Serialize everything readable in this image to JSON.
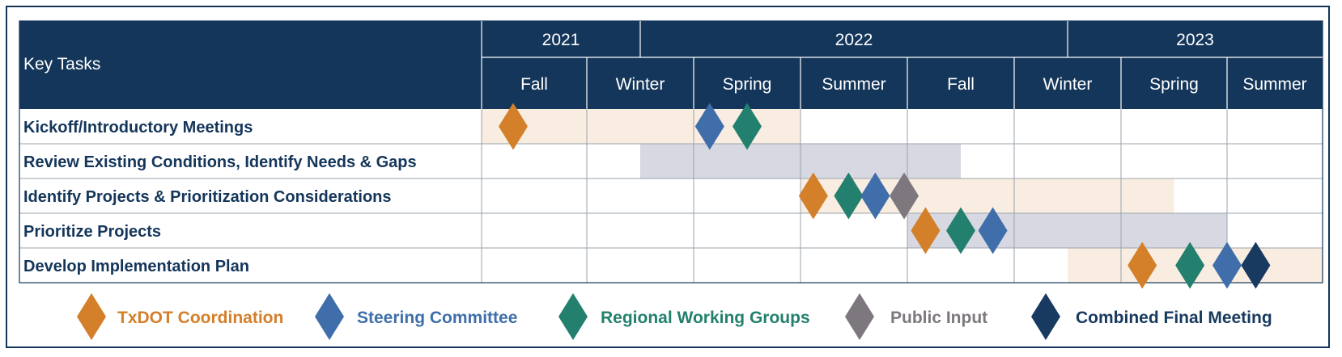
{
  "header": {
    "key_tasks_label": "Key Tasks",
    "years": [
      "2021",
      "2022",
      "2023"
    ],
    "seasons": [
      "Fall",
      "Winter",
      "Spring",
      "Summer",
      "Fall",
      "Winter",
      "Spring",
      "Summer"
    ]
  },
  "tasks": [
    {
      "label": "Kickoff/Introductory Meetings",
      "bar_start": 0.0,
      "bar_end": 3.0,
      "bar_color": "#f8ede0",
      "milestones": [
        {
          "pos": 0.3,
          "type": "txdot"
        },
        {
          "pos": 2.15,
          "type": "steering"
        },
        {
          "pos": 2.5,
          "type": "regional"
        }
      ]
    },
    {
      "label": "Review Existing Conditions, Identify Needs & Gaps",
      "bar_start": 1.5,
      "bar_end": 4.5,
      "bar_color": "#d7d8e1",
      "milestones": []
    },
    {
      "label": "Identify Projects & Prioritization Considerations",
      "bar_start": 3.0,
      "bar_end": 6.5,
      "bar_color": "#f8ede0",
      "milestones": [
        {
          "pos": 3.12,
          "type": "txdot"
        },
        {
          "pos": 3.45,
          "type": "regional"
        },
        {
          "pos": 3.7,
          "type": "steering"
        },
        {
          "pos": 3.97,
          "type": "public"
        }
      ]
    },
    {
      "label": "Prioritize Projects",
      "bar_start": 4.0,
      "bar_end": 7.0,
      "bar_color": "#d7d8e1",
      "milestones": [
        {
          "pos": 4.17,
          "type": "txdot"
        },
        {
          "pos": 4.5,
          "type": "regional"
        },
        {
          "pos": 4.8,
          "type": "steering"
        }
      ]
    },
    {
      "label": "Develop Implementation Plan",
      "bar_start": 5.5,
      "bar_end": 8.0,
      "bar_color": "#f8ede0",
      "milestones": [
        {
          "pos": 6.2,
          "type": "txdot"
        },
        {
          "pos": 6.65,
          "type": "regional"
        },
        {
          "pos": 7.0,
          "type": "steering"
        },
        {
          "pos": 7.3,
          "type": "combined"
        }
      ]
    }
  ],
  "legend": [
    {
      "type": "txdot",
      "label": "TxDOT Coordination",
      "color": "#d47f2a"
    },
    {
      "type": "steering",
      "label": "Steering Committee",
      "color": "#3f6eaa"
    },
    {
      "type": "regional",
      "label": "Regional Working Groups",
      "color": "#23806e"
    },
    {
      "type": "public",
      "label": "Public Input",
      "color": "#7d787e"
    },
    {
      "type": "combined",
      "label": "Combined Final Meeting",
      "color": "#183a60"
    }
  ],
  "colors": {
    "header_bg": "#14365a",
    "header_text": "#ffffff",
    "task_text": "#14365a",
    "grid": "#9aa3ad"
  }
}
